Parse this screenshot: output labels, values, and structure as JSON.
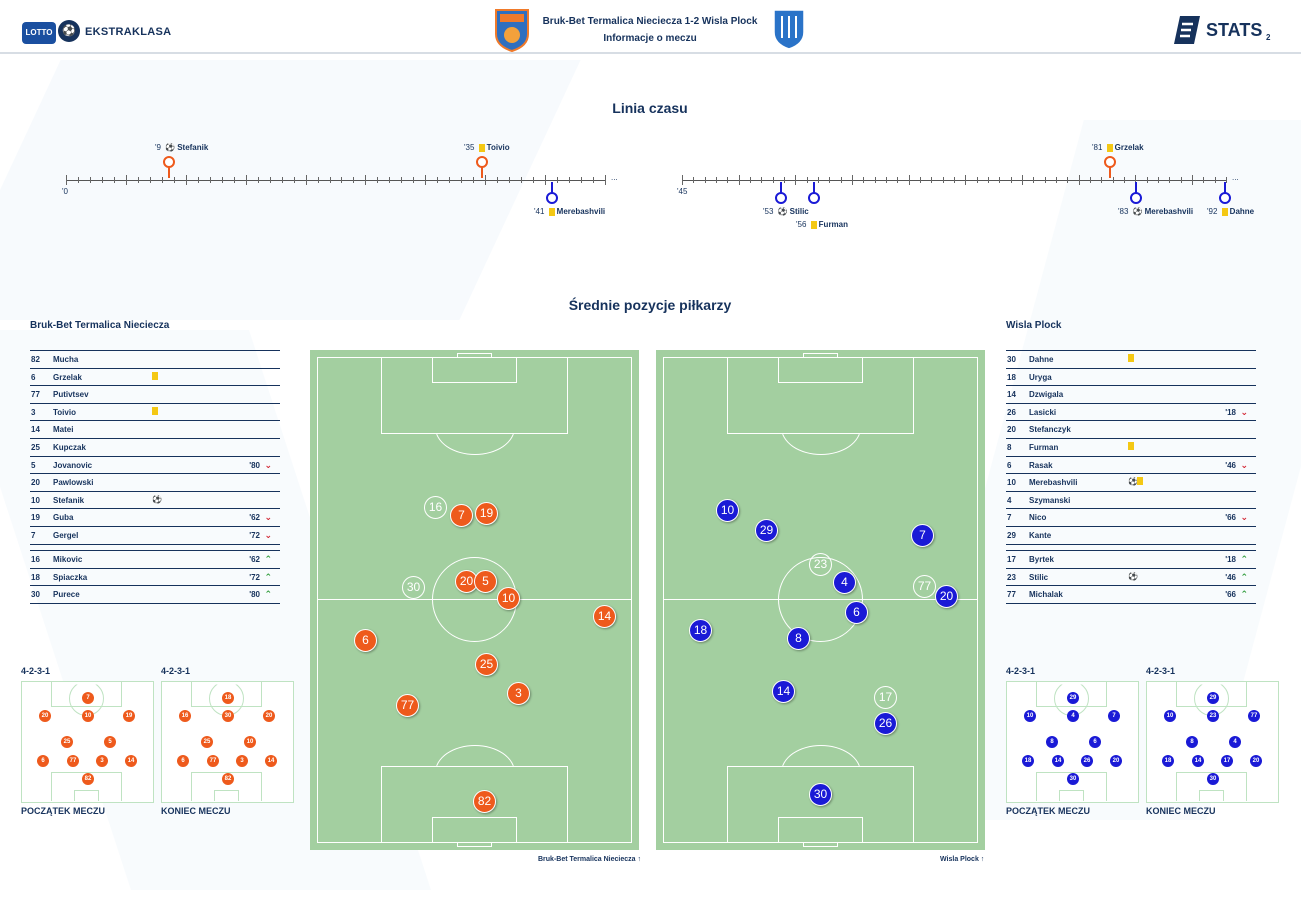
{
  "header": {
    "brand_logo": "LOTTO",
    "league": "EKSTRAKLASA",
    "match_title": "Bruk-Bet Termalica Nieciecza 1-2 Wisla Plock",
    "match_subtitle": "Informacje o meczu",
    "stats_brand": "STATS",
    "stats_suffix": "2"
  },
  "timeline": {
    "title": "Linia czasu",
    "half1_start": "'0",
    "half2_start": "'45",
    "colors": {
      "home": "#ee5a1c",
      "away": "#1a1ad6",
      "yellow": "#f4c814"
    },
    "events": [
      {
        "minute": "'9",
        "type": "goal",
        "player": "Stefanik",
        "team": "home"
      },
      {
        "minute": "'35",
        "type": "yellow",
        "player": "Toivio",
        "team": "home"
      },
      {
        "minute": "'41",
        "type": "yellow",
        "player": "Merebashvili",
        "team": "away"
      },
      {
        "minute": "'53",
        "type": "goal",
        "player": "Stilic",
        "team": "away"
      },
      {
        "minute": "'56",
        "type": "yellow",
        "player": "Furman",
        "team": "away"
      },
      {
        "minute": "'81",
        "type": "yellow",
        "player": "Grzelak",
        "team": "home"
      },
      {
        "minute": "'83",
        "type": "goal",
        "player": "Merebashvili",
        "team": "away"
      },
      {
        "minute": "'92",
        "type": "yellow",
        "player": "Dahne",
        "team": "away"
      }
    ]
  },
  "positions_title": "Średnie pozycje piłkarzy",
  "home": {
    "name": "Bruk-Bet Termalica Nieciecza",
    "starters": [
      {
        "num": "82",
        "name": "Mucha"
      },
      {
        "num": "6",
        "name": "Grzelak",
        "card": "yellow"
      },
      {
        "num": "77",
        "name": "Putivtsev"
      },
      {
        "num": "3",
        "name": "Toivio",
        "card": "yellow"
      },
      {
        "num": "14",
        "name": "Matei"
      },
      {
        "num": "25",
        "name": "Kupczak"
      },
      {
        "num": "5",
        "name": "Jovanovic",
        "sub": "'80",
        "dir": "down"
      },
      {
        "num": "20",
        "name": "Pawlowski"
      },
      {
        "num": "10",
        "name": "Stefanik",
        "goal": "⚽"
      },
      {
        "num": "19",
        "name": "Guba",
        "sub": "'62",
        "dir": "down"
      },
      {
        "num": "7",
        "name": "Gergel",
        "sub": "'72",
        "dir": "down"
      }
    ],
    "subs": [
      {
        "num": "16",
        "name": "Mikovic",
        "sub": "'62",
        "dir": "up"
      },
      {
        "num": "18",
        "name": "Spiaczka",
        "sub": "'72",
        "dir": "up"
      },
      {
        "num": "30",
        "name": "Purece",
        "sub": "'80",
        "dir": "up"
      }
    ],
    "pitch_footer": "Bruk-Bet Termalica Nieciecza",
    "formation_start": "4-2-3-1",
    "formation_end": "4-2-3-1",
    "start_caption": "POCZĄTEK MECZU",
    "end_caption": "KONIEC MECZU"
  },
  "away": {
    "name": "Wisla Plock",
    "starters": [
      {
        "num": "30",
        "name": "Dahne",
        "card": "yellow"
      },
      {
        "num": "18",
        "name": "Uryga"
      },
      {
        "num": "14",
        "name": "Dzwigala"
      },
      {
        "num": "26",
        "name": "Lasicki",
        "sub": "'18",
        "dir": "down"
      },
      {
        "num": "20",
        "name": "Stefanczyk"
      },
      {
        "num": "8",
        "name": "Furman",
        "card": "yellow"
      },
      {
        "num": "6",
        "name": "Rasak",
        "sub": "'46",
        "dir": "down"
      },
      {
        "num": "10",
        "name": "Merebashvili",
        "goal": "⚽",
        "card": "yellow"
      },
      {
        "num": "4",
        "name": "Szymanski"
      },
      {
        "num": "7",
        "name": "Nico",
        "sub": "'66",
        "dir": "down"
      },
      {
        "num": "29",
        "name": "Kante"
      }
    ],
    "subs": [
      {
        "num": "17",
        "name": "Byrtek",
        "sub": "'18",
        "dir": "up"
      },
      {
        "num": "23",
        "name": "Stilic",
        "goal": "⚽",
        "sub": "'46",
        "dir": "up"
      },
      {
        "num": "77",
        "name": "Michalak",
        "sub": "'66",
        "dir": "up"
      }
    ],
    "pitch_footer": "Wisla Plock",
    "formation_start": "4-2-3-1",
    "formation_end": "4-2-3-1",
    "start_caption": "POCZĄTEK MECZU",
    "end_caption": "KONIEC MECZU"
  },
  "icons": {
    "goal": "soccer-ball-icon",
    "yellow_card": "yellow-card-icon",
    "sub_out": "chevron-down-icon",
    "sub_in": "chevron-up-icon",
    "pin": "map-pin-icon"
  }
}
